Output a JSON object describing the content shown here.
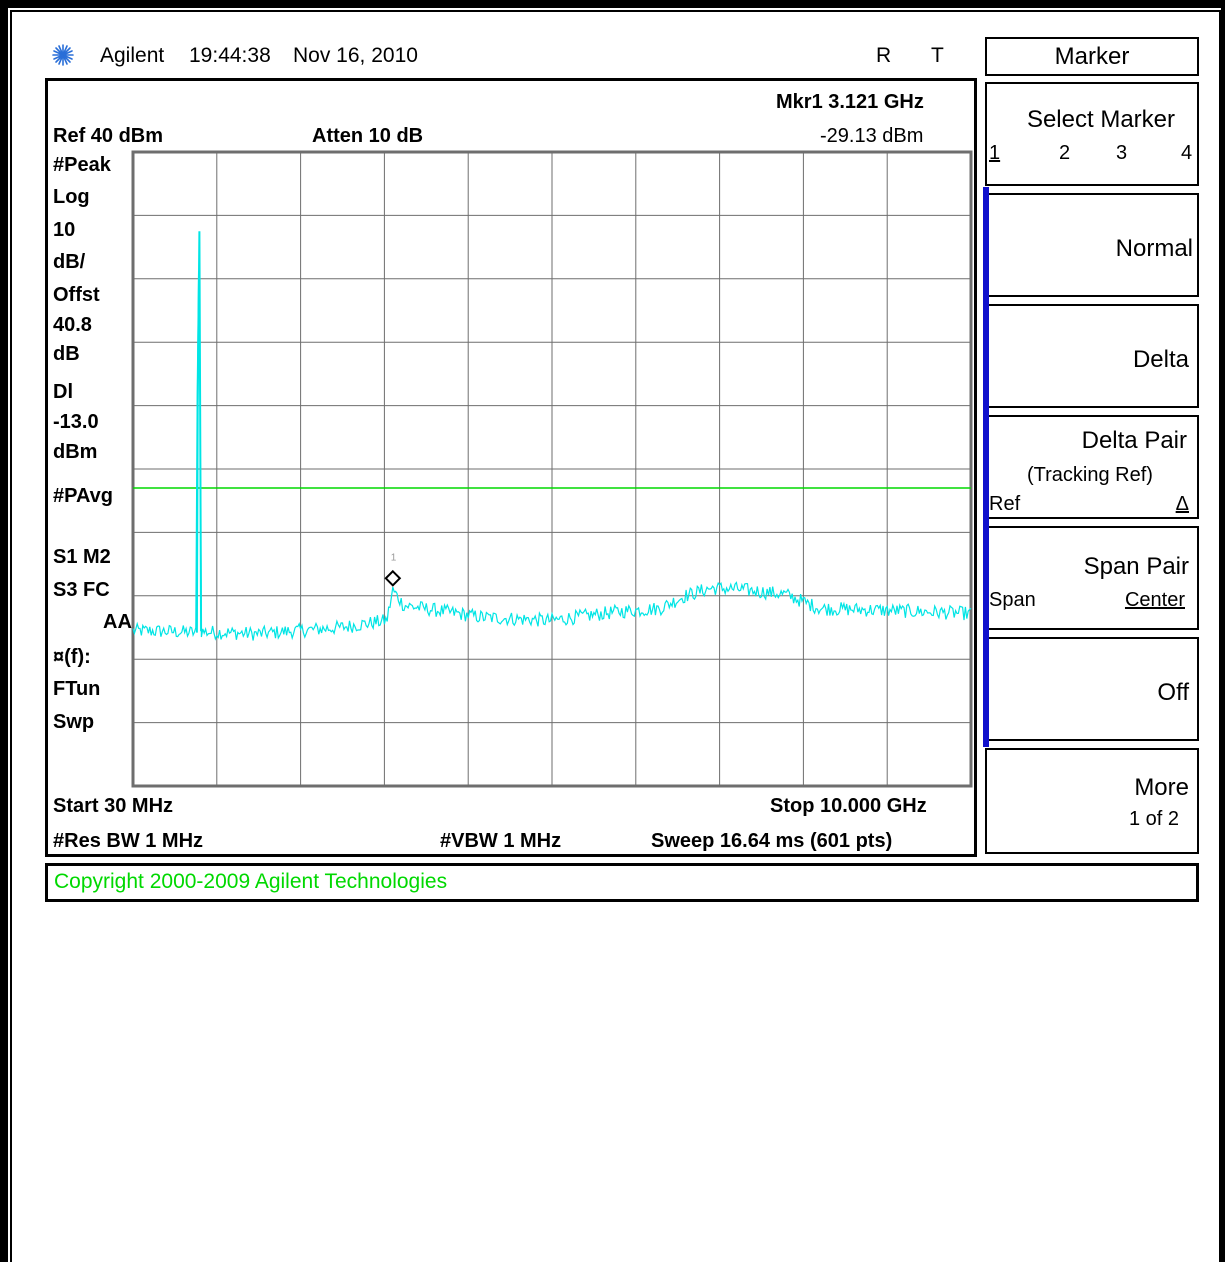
{
  "header": {
    "brand": "Agilent",
    "time": "19:44:38",
    "date": "Nov 16, 2010",
    "indicator_r": "R",
    "indicator_t": "T"
  },
  "display": {
    "marker_freq": "Mkr1  3.121 GHz",
    "ref_level": "Ref 40 dBm",
    "atten": "Atten 10 dB",
    "marker_amp": "-29.13 dBm",
    "marker_label": "1",
    "side_labels": [
      "#Peak",
      "Log",
      "10",
      "dB/",
      "Offst",
      "40.8",
      "dB",
      "Dl",
      "-13.0",
      "dBm",
      "#PAvg",
      "S1  M2",
      "S3  FC",
      "AA",
      "¤(f):",
      "FTun",
      "Swp"
    ],
    "start": "Start 30 MHz",
    "stop": "Stop 10.000 GHz",
    "res_bw": "#Res BW 1 MHz",
    "vbw": "#VBW 1 MHz",
    "sweep": "Sweep 16.64 ms (601 pts)"
  },
  "softkeys": {
    "title": "Marker",
    "select_marker": {
      "label": "Select Marker",
      "options": [
        "1",
        "2",
        "3",
        "4"
      ]
    },
    "normal": "Normal",
    "delta": "Delta",
    "delta_pair": {
      "label": "Delta Pair",
      "sub": "(Tracking Ref)",
      "left": "Ref",
      "right": "Δ"
    },
    "span_pair": {
      "label": "Span Pair",
      "left": "Span",
      "right": "Center"
    },
    "off": "Off",
    "more": {
      "label": "More",
      "sub": "1 of 2"
    }
  },
  "footer": {
    "copyright": "Copyright 2000-2009 Agilent Technologies"
  },
  "colors": {
    "trace": "#00e5e5",
    "display_line": "#00d800",
    "grid": "#6e6e6e",
    "softkey_tab": "#1010cc",
    "copyright_text": "#00d800"
  },
  "chart_data": {
    "type": "line",
    "title": "",
    "xlabel": "",
    "ylabel": "",
    "x_unit": "GHz",
    "y_unit": "dBm",
    "xlim": [
      0.03,
      10.0
    ],
    "ylim": [
      -60,
      40
    ],
    "grid": true,
    "display_line": -13.0,
    "series": [
      {
        "x": [
          0.03,
          0.4,
          0.78,
          0.8,
          0.82,
          0.84,
          0.9,
          1.5,
          2.5,
          3.05,
          3.121,
          3.25,
          3.6,
          4.2,
          5.0,
          5.8,
          6.3,
          6.6,
          6.9,
          7.2,
          7.8,
          8.2,
          9.0,
          9.6,
          10.0
        ],
        "y": [
          -35.5,
          -35.6,
          -35.8,
          15.5,
          27.5,
          -35.6,
          -35.7,
          -36.0,
          -35.0,
          -33.9,
          -29.1,
          -31.5,
          -32.2,
          -33.4,
          -33.9,
          -32.5,
          -32.0,
          -30.0,
          -28.8,
          -28.9,
          -29.8,
          -32.0,
          -32.3,
          -32.6,
          -32.8
        ]
      }
    ],
    "markers": [
      {
        "label": "1",
        "x": 3.121,
        "y": -29.13
      }
    ]
  }
}
